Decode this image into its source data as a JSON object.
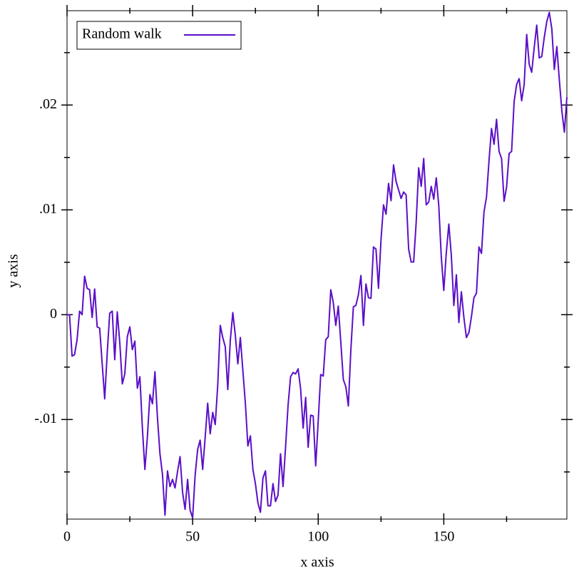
{
  "chart_data": {
    "type": "line",
    "xlabel": "x axis",
    "ylabel": "y axis",
    "legend": "top-left",
    "x": [
      0,
      1,
      2,
      3,
      4,
      5,
      6,
      7,
      8,
      9,
      10,
      11,
      12,
      13,
      14,
      15,
      16,
      17,
      18,
      19,
      20,
      21,
      22,
      23,
      24,
      25,
      26,
      27,
      28,
      29,
      30,
      31,
      32,
      33,
      34,
      35,
      36,
      37,
      38,
      39,
      40,
      41,
      42,
      43,
      44,
      45,
      46,
      47,
      48,
      49,
      50,
      51,
      52,
      53,
      54,
      55,
      56,
      57,
      58,
      59,
      60,
      61,
      62,
      63,
      64,
      65,
      66,
      67,
      68,
      69,
      70,
      71,
      72,
      73,
      74,
      75,
      76,
      77,
      78,
      79,
      80,
      81,
      82,
      83,
      84,
      85,
      86,
      87,
      88,
      89,
      90,
      91,
      92,
      93,
      94,
      95,
      96,
      97,
      98,
      99,
      100,
      101,
      102,
      103,
      104,
      105,
      106,
      107,
      108,
      109,
      110,
      111,
      112,
      113,
      114,
      115,
      116,
      117,
      118,
      119,
      120,
      121,
      122,
      123,
      124,
      125,
      126,
      127,
      128,
      129,
      130,
      131,
      132,
      133,
      134,
      135,
      136,
      137,
      138,
      139,
      140,
      141,
      142,
      143,
      144,
      145,
      146,
      147,
      148,
      149,
      150,
      151,
      152,
      153,
      154,
      155,
      156,
      157,
      158,
      159,
      160,
      161,
      162,
      163,
      164,
      165,
      166,
      167,
      168,
      169,
      170,
      171,
      172,
      173,
      174,
      175,
      176,
      177,
      178,
      179,
      180,
      181,
      182,
      183,
      184,
      185,
      186,
      187,
      188,
      189,
      190,
      191,
      192,
      193,
      194,
      195,
      196,
      197,
      198,
      199
    ],
    "series": [
      {
        "name": "Random walk",
        "color": "#5a0fc8",
        "values": [
          0,
          0,
          -0.00395,
          -0.00381,
          -0.00238,
          0.00034,
          0,
          0.00367,
          0.00252,
          0.00238,
          -0.00027,
          0.00245,
          -0.00116,
          -0.00129,
          -0.00469,
          -0.00803,
          -0.00367,
          0.00014,
          0.00034,
          -0.00429,
          0.00027,
          -0.00265,
          -0.0066,
          -0.00565,
          -0.00211,
          -0.00116,
          -0.00333,
          -0.00252,
          -0.00701,
          -0.00592,
          -0.01082,
          -0.01476,
          -0.01163,
          -0.00762,
          -0.0085,
          -0.00544,
          -0.0098,
          -0.01327,
          -0.01524,
          -0.01912,
          -0.0149,
          -0.01639,
          -0.01571,
          -0.01653,
          -0.01497,
          -0.01354,
          -0.01694,
          -0.01857,
          -0.01571,
          -0.01864,
          -0.01939,
          -0.01531,
          -0.01286,
          -0.01197,
          -0.01476,
          -0.0117,
          -0.00844,
          -0.01136,
          -0.00932,
          -0.01048,
          -0.00673,
          -0.00102,
          -0.00218,
          -0.00306,
          -0.00714,
          -0.00245,
          0.0002,
          -0.00197,
          -0.00469,
          -0.00218,
          -0.00531,
          -0.00844,
          -0.01252,
          -0.01156,
          -0.01476,
          -0.01612,
          -0.01796,
          -0.01884,
          -0.01558,
          -0.0149,
          -0.01823,
          -0.01823,
          -0.01612,
          -0.01782,
          -0.01721,
          -0.01327,
          -0.01639,
          -0.01265,
          -0.00864,
          -0.00592,
          -0.00551,
          -0.00565,
          -0.00517,
          -0.00707,
          -0.01082,
          -0.00789,
          -0.01265,
          -0.00959,
          -0.00966,
          -0.01442,
          -0.01014,
          -0.00571,
          -0.00585,
          -0.00238,
          -0.00211,
          0.00238,
          0.00116,
          -0.00102,
          0.00082,
          -0.00265,
          -0.00619,
          -0.00687,
          -0.00871,
          -0.00333,
          0.00075,
          0.00088,
          0.0019,
          0.00374,
          -0.00102,
          0.00293,
          0.00163,
          0.00156,
          0.00646,
          0.00626,
          0.00252,
          0.00714,
          0.01048,
          0.00959,
          0.01252,
          0.01088,
          0.01429,
          0.01272,
          0.0119,
          0.01109,
          0.0117,
          0.01143,
          0.00626,
          0.00503,
          0.00503,
          0.00878,
          0.01401,
          0.01224,
          0.0149,
          0.01048,
          0.01075,
          0.01224,
          0.01102,
          0.01306,
          0.01041,
          0.00551,
          0.00231,
          0.00592,
          0.00864,
          0.00565,
          0.00088,
          0.00381,
          -0.00075,
          0.00218,
          -0.00027,
          -0.00218,
          -0.0017,
          -0.0002,
          0.00163,
          0.00204,
          0.00646,
          0.00585,
          0.0098,
          0.01122,
          0.01469,
          0.01776,
          0.01626,
          0.01864,
          0.01558,
          0.0149,
          0.01082,
          0.01218,
          0.01537,
          0.01558,
          0.02034,
          0.02197,
          0.02252,
          0.02041,
          0.02197,
          0.02673,
          0.02388,
          0.02313,
          0.02551,
          0.02762,
          0.02449,
          0.02463,
          0.02646,
          0.02796,
          0.02884,
          0.02728,
          0.0234,
          0.02558,
          0.02238,
          0.01946,
          0.01741,
          0.02075
        ]
      }
    ],
    "xlim": [
      0,
      199
    ],
    "ylim": [
      -0.0195,
      0.029
    ],
    "xticks": [
      0,
      50,
      100,
      150
    ],
    "xticks_minor": [
      25,
      75,
      125,
      175
    ],
    "yticks": [
      {
        "value": -0.01,
        "label": "-.01"
      },
      0,
      {
        "value": 0.01,
        "label": ".01"
      },
      {
        "value": 0.02,
        "label": ".02"
      }
    ],
    "yticks_minor": [
      -0.015,
      -0.005,
      0.005,
      0.015,
      0.025
    ]
  }
}
